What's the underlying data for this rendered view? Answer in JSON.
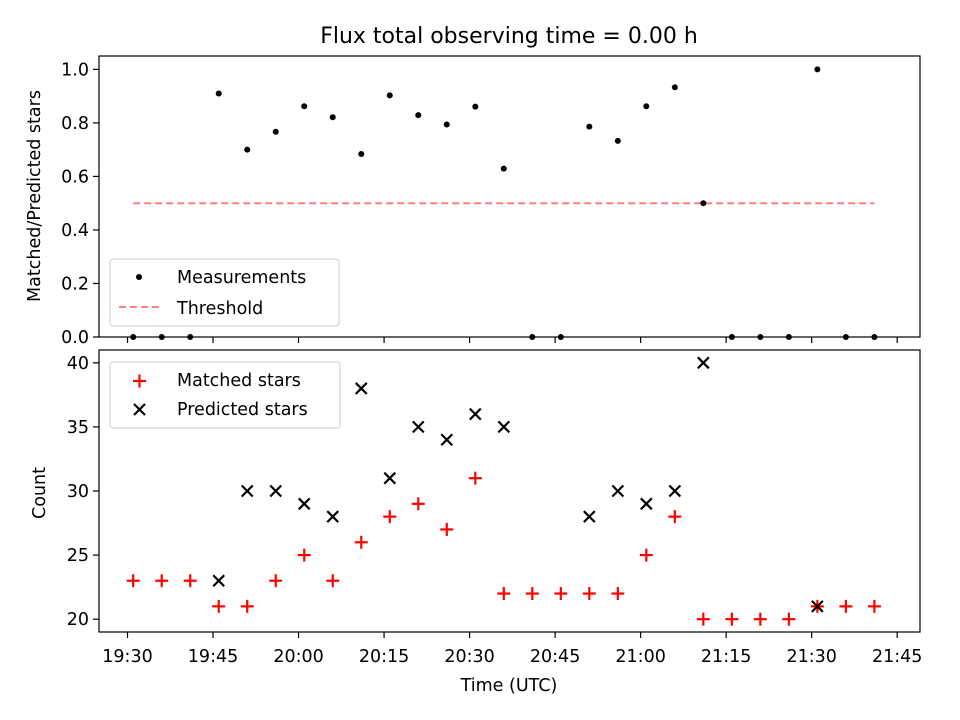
{
  "title": "Flux total observing time = 0.00 h",
  "chart_data": [
    {
      "type": "scatter",
      "ylabel": "Matched/Predicted stars",
      "xlim": [
        "19:25",
        "21:49"
      ],
      "ylim": [
        0,
        1.05
      ],
      "yticks": [
        "0.0",
        "0.2",
        "0.4",
        "0.6",
        "0.8",
        "1.0"
      ],
      "grid": false,
      "legend_position": "lower-left",
      "series": [
        {
          "name": "Measurements",
          "style": "dot",
          "color": "#000000",
          "x": [
            "19:31",
            "19:36",
            "19:41",
            "19:46",
            "19:51",
            "19:56",
            "20:01",
            "20:06",
            "20:11",
            "20:16",
            "20:21",
            "20:26",
            "20:31",
            "20:36",
            "20:41",
            "20:46",
            "20:51",
            "20:56",
            "21:01",
            "21:06",
            "21:11",
            "21:16",
            "21:21",
            "21:26",
            "21:31",
            "21:36",
            "21:41"
          ],
          "y": [
            0.0,
            0.0,
            0.0,
            0.91,
            0.7,
            0.767,
            0.862,
            0.821,
            0.684,
            0.903,
            0.829,
            0.794,
            0.861,
            0.629,
            0.0,
            0.0,
            0.786,
            0.733,
            0.862,
            0.933,
            0.5,
            0.0,
            0.0,
            0.0,
            1.0,
            0.0,
            0.0
          ]
        },
        {
          "name": "Threshold",
          "style": "dashed-line",
          "color": "#ff7f7f",
          "x": [
            "19:31",
            "21:41"
          ],
          "y": [
            0.5,
            0.5
          ]
        }
      ]
    },
    {
      "type": "scatter",
      "xlabel": "Time (UTC)",
      "ylabel": "Count",
      "xlim": [
        "19:25",
        "21:49"
      ],
      "ylim": [
        19,
        41
      ],
      "xticks": [
        "19:30",
        "19:45",
        "20:00",
        "20:15",
        "20:30",
        "20:45",
        "21:00",
        "21:15",
        "21:30",
        "21:45"
      ],
      "yticks": [
        "20",
        "25",
        "30",
        "35",
        "40"
      ],
      "grid": false,
      "legend_position": "upper-left",
      "series": [
        {
          "name": "Matched stars",
          "style": "plus",
          "color": "#ff0000",
          "x": [
            "19:31",
            "19:36",
            "19:41",
            "19:46",
            "19:51",
            "19:56",
            "20:01",
            "20:06",
            "20:11",
            "20:16",
            "20:21",
            "20:26",
            "20:31",
            "20:36",
            "20:41",
            "20:46",
            "20:51",
            "20:56",
            "21:01",
            "21:06",
            "21:11",
            "21:16",
            "21:21",
            "21:26",
            "21:31",
            "21:36",
            "21:41"
          ],
          "y": [
            23,
            23,
            23,
            21,
            21,
            23,
            25,
            23,
            26,
            28,
            29,
            27,
            31,
            22,
            22,
            22,
            22,
            22,
            25,
            28,
            20,
            20,
            20,
            20,
            21,
            21,
            21
          ]
        },
        {
          "name": "Predicted stars",
          "style": "cross",
          "color": "#000000",
          "x": [
            "19:46",
            "19:51",
            "19:56",
            "20:01",
            "20:06",
            "20:11",
            "20:16",
            "20:21",
            "20:26",
            "20:31",
            "20:36",
            "20:51",
            "20:56",
            "21:01",
            "21:06",
            "21:11",
            "21:31"
          ],
          "y": [
            23,
            30,
            30,
            29,
            28,
            38,
            31,
            35,
            34,
            36,
            35,
            28,
            30,
            29,
            30,
            40,
            21
          ]
        }
      ]
    }
  ]
}
